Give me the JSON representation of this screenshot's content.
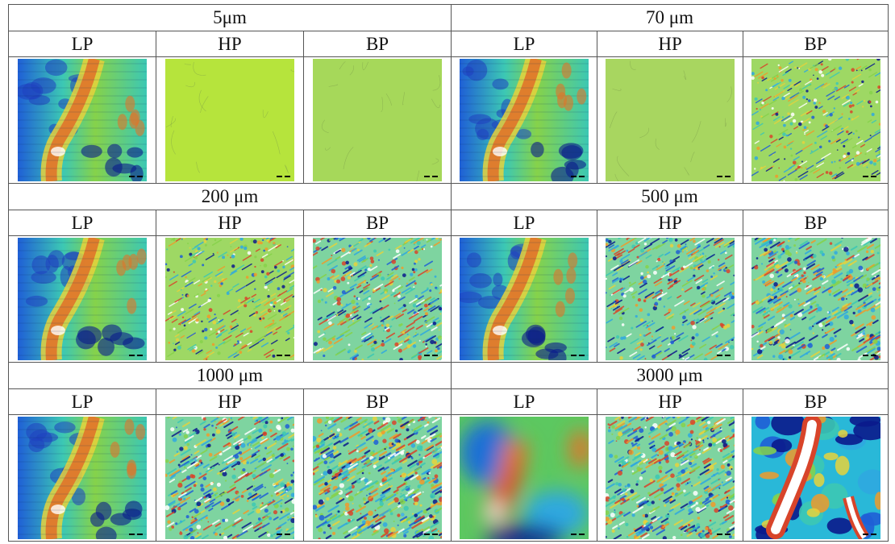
{
  "blocks": [
    {
      "left": {
        "label": "5μm"
      },
      "right": {
        "label": "70 μm"
      }
    },
    {
      "left": {
        "label": "200 μm"
      },
      "right": {
        "label": "500 μm"
      }
    },
    {
      "left": {
        "label": "1000 μm"
      },
      "right": {
        "label": "3000 μm"
      }
    }
  ],
  "filters": [
    "LP",
    "HP",
    "BP",
    "LP",
    "HP",
    "BP"
  ],
  "colormap": [
    "#0a1a8c",
    "#1f5fd6",
    "#2fa8e0",
    "#3cc8b4",
    "#86d24a",
    "#e6d23c",
    "#f09a2a",
    "#d8442a",
    "#ffffff"
  ],
  "panels": [
    {
      "id": "5um-LP",
      "kind": "terrain",
      "scale": 1
    },
    {
      "id": "5um-HP",
      "kind": "flat",
      "tone": "#b6e43c"
    },
    {
      "id": "5um-BP",
      "kind": "flat",
      "tone": "#a6d85a"
    },
    {
      "id": "70um-LP",
      "kind": "terrain",
      "scale": 1
    },
    {
      "id": "70um-HP",
      "kind": "flat",
      "tone": "#a8d660"
    },
    {
      "id": "70um-BP",
      "kind": "texture",
      "density": 0.25
    },
    {
      "id": "200um-LP",
      "kind": "terrain",
      "scale": 1
    },
    {
      "id": "200um-HP",
      "kind": "texture",
      "density": 0.3
    },
    {
      "id": "200um-BP",
      "kind": "texture",
      "density": 0.5
    },
    {
      "id": "500um-LP",
      "kind": "terrain",
      "scale": 1
    },
    {
      "id": "500um-HP",
      "kind": "texture",
      "density": 0.45
    },
    {
      "id": "500um-BP",
      "kind": "texture",
      "density": 0.65
    },
    {
      "id": "1000um-LP",
      "kind": "terrain",
      "scale": 1.5
    },
    {
      "id": "1000um-HP",
      "kind": "texture",
      "density": 0.6
    },
    {
      "id": "1000um-BP",
      "kind": "texture",
      "density": 0.8
    },
    {
      "id": "3000um-LP",
      "kind": "blur"
    },
    {
      "id": "3000um-HP",
      "kind": "texture",
      "density": 0.7
    },
    {
      "id": "3000um-BP",
      "kind": "blobs"
    }
  ]
}
